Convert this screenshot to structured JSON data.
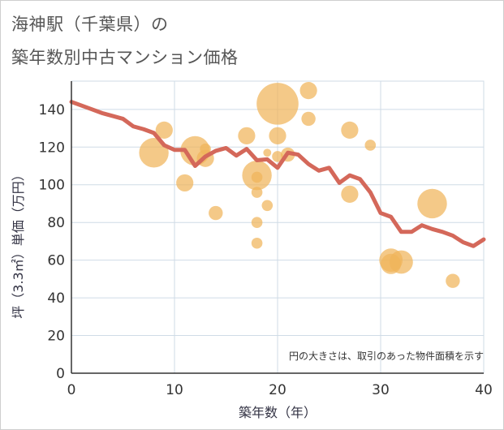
{
  "title_line1": "海神駅（千葉県）の",
  "title_line2": "築年数別中古マンション価格",
  "chart_data": {
    "type": "scatter",
    "xlabel": "築年数（年）",
    "ylabel": "坪（3.3㎡）単価（万円）",
    "xlim": [
      0,
      40
    ],
    "ylim": [
      0,
      155
    ],
    "xticks": [
      0,
      10,
      20,
      30,
      40
    ],
    "yticks": [
      0,
      20,
      40,
      60,
      80,
      100,
      120,
      140
    ],
    "grid": true,
    "note": "円の大きさは、取引のあった物件面積を示す",
    "colors": {
      "bubble": "#f0b45a",
      "line": "#d4685a",
      "grid": "#cfdbe6",
      "axis": "#333333"
    },
    "bubbles": [
      {
        "x": 8,
        "y": 117,
        "size": 4
      },
      {
        "x": 9,
        "y": 129,
        "size": 2
      },
      {
        "x": 11,
        "y": 101,
        "size": 2
      },
      {
        "x": 12,
        "y": 118,
        "size": 4
      },
      {
        "x": 13,
        "y": 114,
        "size": 2
      },
      {
        "x": 13,
        "y": 119,
        "size": 1
      },
      {
        "x": 14,
        "y": 85,
        "size": 1.5
      },
      {
        "x": 17,
        "y": 126,
        "size": 2
      },
      {
        "x": 18,
        "y": 105,
        "size": 4
      },
      {
        "x": 18,
        "y": 104,
        "size": 1
      },
      {
        "x": 18,
        "y": 96,
        "size": 1
      },
      {
        "x": 18,
        "y": 80,
        "size": 1
      },
      {
        "x": 18,
        "y": 69,
        "size": 1
      },
      {
        "x": 19,
        "y": 117,
        "size": 0.5
      },
      {
        "x": 19,
        "y": 89,
        "size": 1
      },
      {
        "x": 20,
        "y": 143,
        "size": 6
      },
      {
        "x": 20,
        "y": 126,
        "size": 2
      },
      {
        "x": 20,
        "y": 115,
        "size": 1
      },
      {
        "x": 21,
        "y": 116,
        "size": 1.5
      },
      {
        "x": 23,
        "y": 150,
        "size": 2
      },
      {
        "x": 23,
        "y": 135,
        "size": 1.5
      },
      {
        "x": 27,
        "y": 129,
        "size": 2
      },
      {
        "x": 27,
        "y": 95,
        "size": 2
      },
      {
        "x": 29,
        "y": 121,
        "size": 1
      },
      {
        "x": 31,
        "y": 60,
        "size": 3
      },
      {
        "x": 31,
        "y": 58,
        "size": 2.5
      },
      {
        "x": 32,
        "y": 59,
        "size": 3
      },
      {
        "x": 35,
        "y": 90,
        "size": 4
      },
      {
        "x": 37,
        "y": 49,
        "size": 1.5
      }
    ],
    "trend": {
      "x": [
        0,
        1,
        2,
        3,
        4,
        5,
        6,
        7,
        8,
        9,
        10,
        11,
        12,
        13,
        14,
        15,
        16,
        17,
        18,
        19,
        20,
        21,
        22,
        23,
        24,
        25,
        26,
        27,
        28,
        29,
        30,
        31,
        32,
        33,
        34,
        35,
        36,
        37,
        38,
        39,
        40
      ],
      "y": [
        144,
        142,
        140,
        138,
        136.5,
        135,
        131,
        129.5,
        127.5,
        121,
        118.5,
        118.5,
        110,
        115,
        118,
        119.5,
        115.5,
        119,
        113,
        113.5,
        109,
        117,
        116,
        111,
        107.5,
        109,
        101,
        105,
        103,
        96,
        85,
        83,
        75,
        75,
        78.5,
        76.5,
        75,
        73,
        69.5,
        67.5,
        71
      ]
    }
  }
}
